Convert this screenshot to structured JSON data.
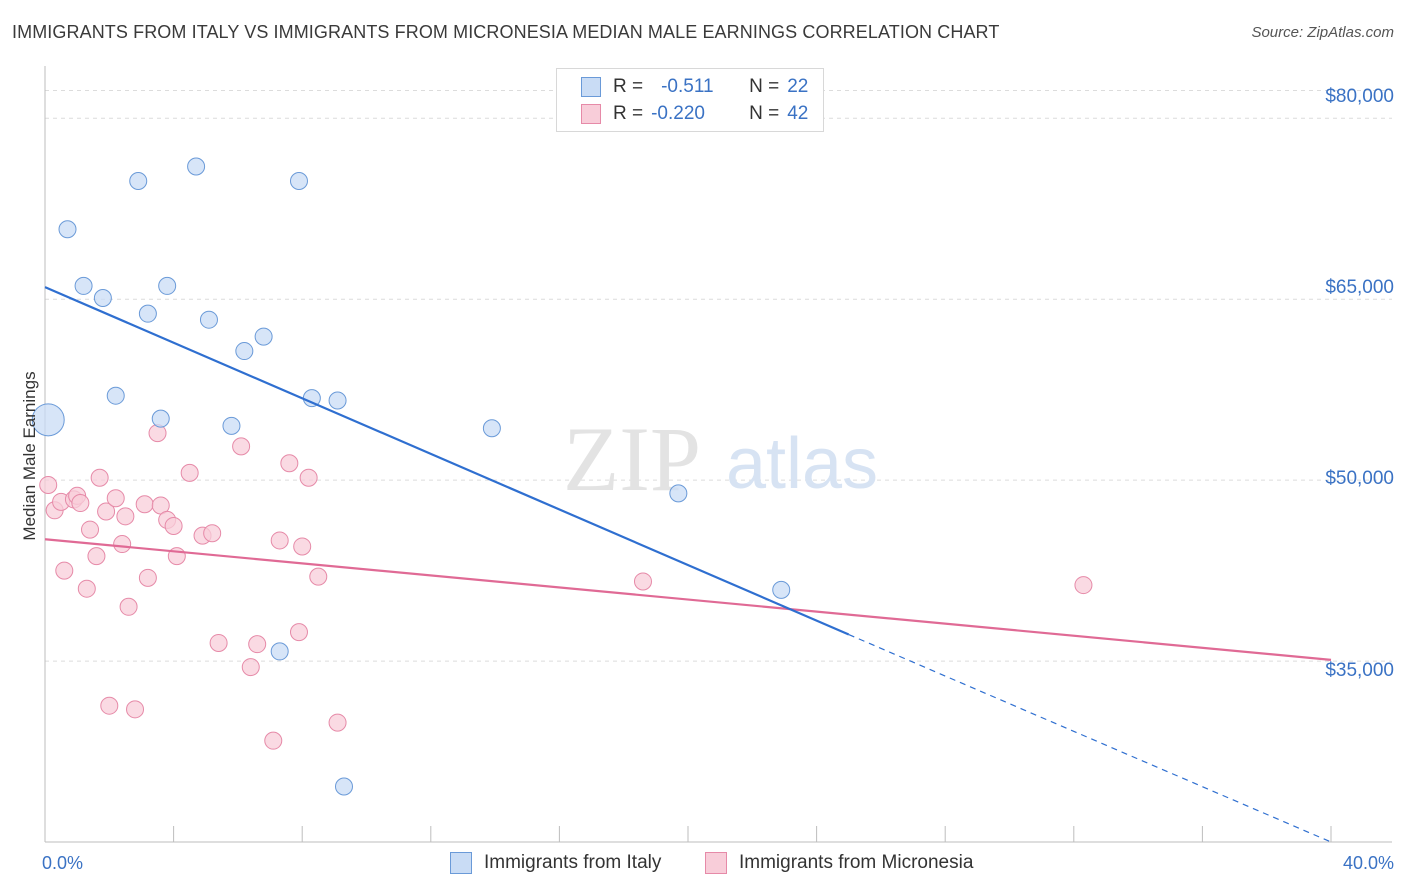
{
  "title": "IMMIGRANTS FROM ITALY VS IMMIGRANTS FROM MICRONESIA MEDIAN MALE EARNINGS CORRELATION CHART",
  "source": "Source: ZipAtlas.com",
  "watermark": {
    "zip": "ZIP",
    "atlas": "atlas"
  },
  "legend": {
    "rows": [
      {
        "r_label": "R =",
        "r_value": "-0.511",
        "n_label": "N =",
        "n_value": "22",
        "color": "#a9c8ee",
        "border": "#6a9ad8"
      },
      {
        "r_label": "R =",
        "r_value": "-0.220",
        "n_label": "N =",
        "n_value": "42",
        "color": "#f7bcd0",
        "border": "#e68aa8"
      }
    ]
  },
  "bottom_legend": {
    "italy": "Immigrants from Italy",
    "micronesia": "Immigrants from Micronesia"
  },
  "x_labels": {
    "min": "0.0%",
    "max": "40.0%"
  },
  "y_labels": [
    "$80,000",
    "$65,000",
    "$50,000",
    "$35,000"
  ],
  "chart_data": {
    "type": "scatter",
    "title": "IMMIGRANTS FROM ITALY VS IMMIGRANTS FROM MICRONESIA MEDIAN MALE EARNINGS CORRELATION CHART",
    "xlabel": "",
    "ylabel": "Median Male Earnings",
    "xlim": [
      0,
      40
    ],
    "ylim": [
      20000,
      84000
    ],
    "yticks": [
      35000,
      50000,
      65000,
      80000
    ],
    "series": [
      {
        "name": "Immigrants from Italy",
        "color": "#6a9ad8",
        "fill": "#c9dcf5",
        "line_color": "#2f6fd0",
        "trend": {
          "x0": 0,
          "y0": 66000,
          "x1": 25,
          "y1": 37200,
          "dash_to_x": 40,
          "dash_to_y": 20000
        },
        "points": [
          {
            "x": 0.1,
            "y": 55000,
            "big": true
          },
          {
            "x": 0.7,
            "y": 70800
          },
          {
            "x": 1.2,
            "y": 66100
          },
          {
            "x": 1.8,
            "y": 65100
          },
          {
            "x": 2.2,
            "y": 57000
          },
          {
            "x": 2.9,
            "y": 74800
          },
          {
            "x": 3.2,
            "y": 63800
          },
          {
            "x": 3.6,
            "y": 55100
          },
          {
            "x": 3.8,
            "y": 66100
          },
          {
            "x": 4.7,
            "y": 76000
          },
          {
            "x": 5.1,
            "y": 63300
          },
          {
            "x": 5.8,
            "y": 54500
          },
          {
            "x": 6.2,
            "y": 60700
          },
          {
            "x": 6.8,
            "y": 61900
          },
          {
            "x": 7.3,
            "y": 35800
          },
          {
            "x": 7.9,
            "y": 74800
          },
          {
            "x": 8.3,
            "y": 56800
          },
          {
            "x": 9.1,
            "y": 56600
          },
          {
            "x": 9.3,
            "y": 24600
          },
          {
            "x": 13.9,
            "y": 54300
          },
          {
            "x": 19.7,
            "y": 48900
          },
          {
            "x": 22.9,
            "y": 40900
          }
        ]
      },
      {
        "name": "Immigrants from Micronesia",
        "color": "#e68aa8",
        "fill": "#f8cdd9",
        "line_color": "#e06a95",
        "trend": {
          "x0": 0,
          "y0": 45100,
          "x1": 40,
          "y1": 35100
        },
        "points": [
          {
            "x": 0.1,
            "y": 49600
          },
          {
            "x": 0.3,
            "y": 47500
          },
          {
            "x": 0.5,
            "y": 48200
          },
          {
            "x": 0.6,
            "y": 42500
          },
          {
            "x": 0.9,
            "y": 48400
          },
          {
            "x": 1.0,
            "y": 48700
          },
          {
            "x": 1.1,
            "y": 48100
          },
          {
            "x": 1.3,
            "y": 41000
          },
          {
            "x": 1.4,
            "y": 45900
          },
          {
            "x": 1.6,
            "y": 43700
          },
          {
            "x": 1.7,
            "y": 50200
          },
          {
            "x": 1.9,
            "y": 47400
          },
          {
            "x": 2.0,
            "y": 31300
          },
          {
            "x": 2.2,
            "y": 48500
          },
          {
            "x": 2.4,
            "y": 44700
          },
          {
            "x": 2.5,
            "y": 47000
          },
          {
            "x": 2.6,
            "y": 39500
          },
          {
            "x": 2.8,
            "y": 31000
          },
          {
            "x": 3.1,
            "y": 48000
          },
          {
            "x": 3.2,
            "y": 41900
          },
          {
            "x": 3.5,
            "y": 53900
          },
          {
            "x": 3.6,
            "y": 47900
          },
          {
            "x": 3.8,
            "y": 46700
          },
          {
            "x": 4.0,
            "y": 46200
          },
          {
            "x": 4.1,
            "y": 43700
          },
          {
            "x": 4.5,
            "y": 50600
          },
          {
            "x": 4.9,
            "y": 45400
          },
          {
            "x": 5.2,
            "y": 45600
          },
          {
            "x": 5.4,
            "y": 36500
          },
          {
            "x": 6.1,
            "y": 52800
          },
          {
            "x": 6.4,
            "y": 34500
          },
          {
            "x": 6.6,
            "y": 36400
          },
          {
            "x": 7.1,
            "y": 28400
          },
          {
            "x": 7.3,
            "y": 45000
          },
          {
            "x": 7.6,
            "y": 51400
          },
          {
            "x": 7.9,
            "y": 37400
          },
          {
            "x": 8.0,
            "y": 44500
          },
          {
            "x": 8.2,
            "y": 50200
          },
          {
            "x": 8.5,
            "y": 42000
          },
          {
            "x": 9.1,
            "y": 29900
          },
          {
            "x": 18.6,
            "y": 41600
          },
          {
            "x": 32.3,
            "y": 41300
          }
        ]
      }
    ]
  }
}
